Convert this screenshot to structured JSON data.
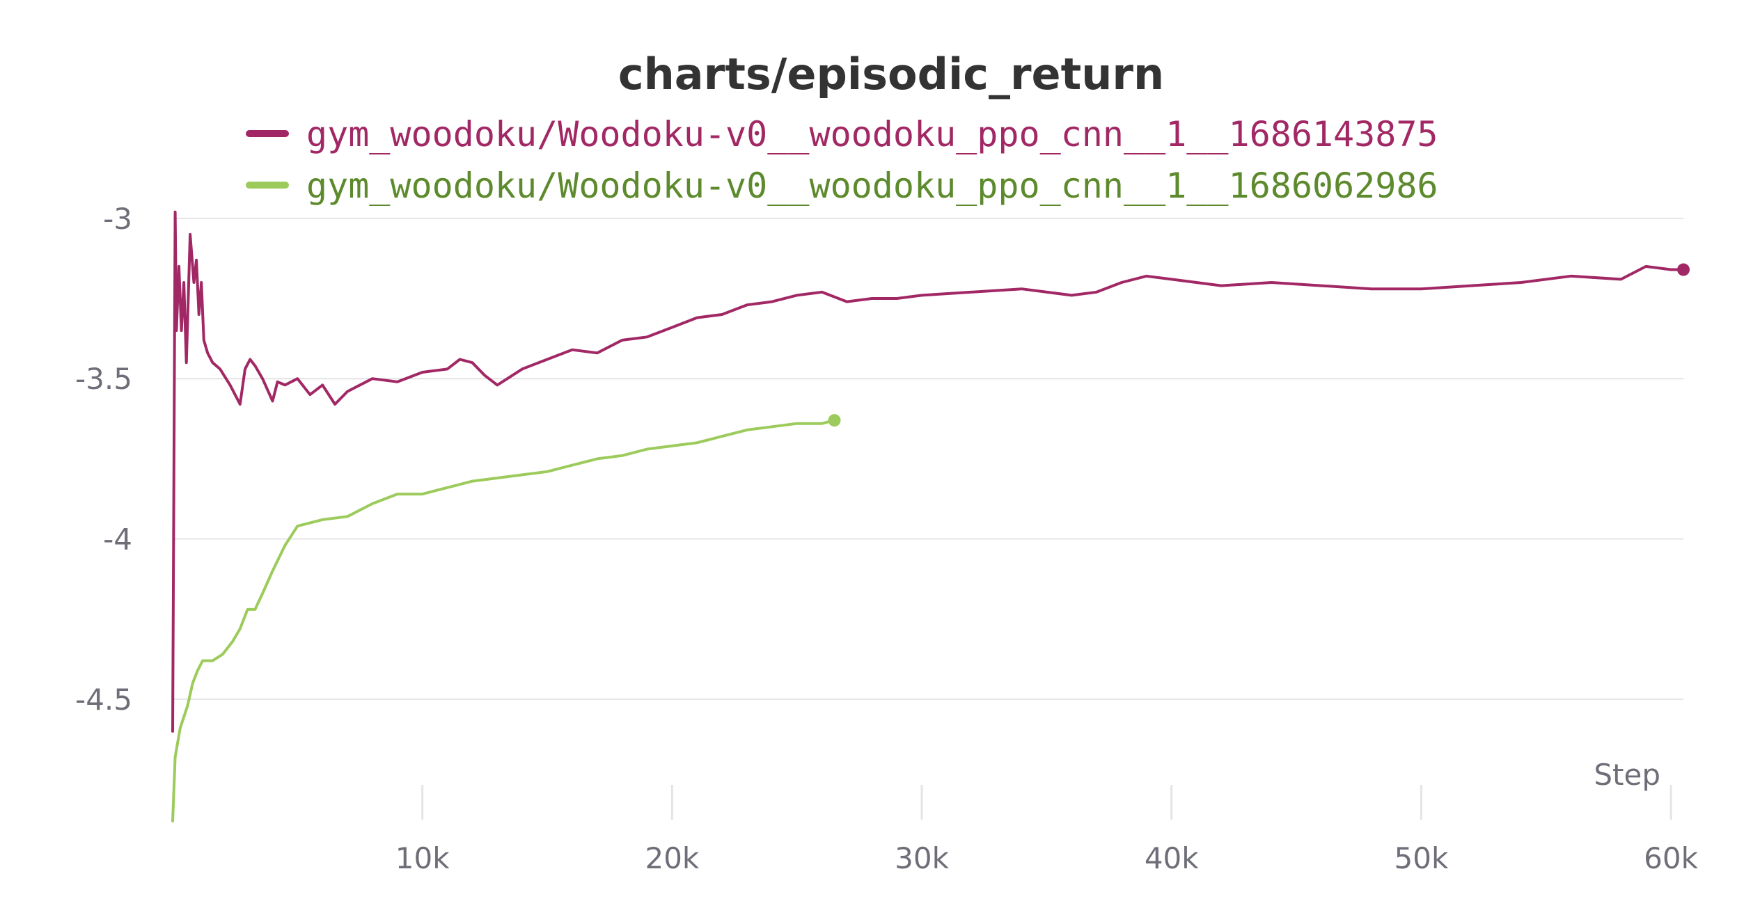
{
  "chart_data": {
    "type": "line",
    "title": "charts/episodic_return",
    "xlabel": "Step",
    "ylabel": "",
    "xlim": [
      0,
      60500
    ],
    "ylim": [
      -4.88,
      -2.97
    ],
    "x_ticks": [
      10000,
      20000,
      30000,
      40000,
      50000,
      60000
    ],
    "x_tick_labels": [
      "10k",
      "20k",
      "30k",
      "40k",
      "50k",
      "60k"
    ],
    "y_ticks": [
      -3,
      -3.5,
      -4,
      -4.5
    ],
    "y_tick_labels": [
      "-3",
      "-3.5",
      "-4",
      "-4.5"
    ],
    "grid": true,
    "legend_position": "top",
    "series": [
      {
        "name": "gym_woodoku/Woodoku-v0__woodoku_ppo_cnn__1__1686143875",
        "color": "#a12864",
        "legend_text_color": "#a12864",
        "x": [
          0,
          100,
          150,
          250,
          350,
          450,
          550,
          700,
          850,
          950,
          1050,
          1150,
          1250,
          1400,
          1600,
          1900,
          2300,
          2700,
          2900,
          3100,
          3300,
          3600,
          4000,
          4200,
          4500,
          5000,
          5500,
          6000,
          6500,
          7000,
          8000,
          9000,
          10000,
          11000,
          11500,
          12000,
          12500,
          13000,
          14000,
          15000,
          16000,
          17000,
          18000,
          19000,
          20000,
          21000,
          22000,
          23000,
          24000,
          25000,
          26000,
          27000,
          28000,
          29000,
          30000,
          32000,
          34000,
          36000,
          37000,
          38000,
          39000,
          40000,
          42000,
          44000,
          46000,
          48000,
          50000,
          52000,
          54000,
          56000,
          58000,
          59000,
          60000,
          60500
        ],
        "y": [
          -4.6,
          -2.98,
          -3.35,
          -3.15,
          -3.35,
          -3.2,
          -3.45,
          -3.05,
          -3.2,
          -3.13,
          -3.3,
          -3.2,
          -3.38,
          -3.42,
          -3.45,
          -3.47,
          -3.52,
          -3.58,
          -3.47,
          -3.44,
          -3.46,
          -3.5,
          -3.57,
          -3.51,
          -3.52,
          -3.5,
          -3.55,
          -3.52,
          -3.58,
          -3.54,
          -3.5,
          -3.51,
          -3.48,
          -3.47,
          -3.44,
          -3.45,
          -3.49,
          -3.52,
          -3.47,
          -3.44,
          -3.41,
          -3.42,
          -3.38,
          -3.37,
          -3.34,
          -3.31,
          -3.3,
          -3.27,
          -3.26,
          -3.24,
          -3.23,
          -3.26,
          -3.25,
          -3.25,
          -3.24,
          -3.23,
          -3.22,
          -3.24,
          -3.23,
          -3.2,
          -3.18,
          -3.19,
          -3.21,
          -3.2,
          -3.21,
          -3.22,
          -3.22,
          -3.21,
          -3.2,
          -3.18,
          -3.19,
          -3.15,
          -3.16,
          -3.16
        ]
      },
      {
        "name": "gym_woodoku/Woodoku-v0__woodoku_ppo_cnn__1__1686062986",
        "color": "#9ccb5b",
        "legend_text_color": "#5d8a2c",
        "x": [
          0,
          100,
          300,
          600,
          800,
          1000,
          1200,
          1600,
          2000,
          2400,
          2700,
          3000,
          3300,
          3600,
          4000,
          4500,
          5000,
          6000,
          7000,
          8000,
          9000,
          10000,
          11000,
          12000,
          14000,
          15000,
          16000,
          17000,
          18000,
          19000,
          20000,
          21000,
          22000,
          23000,
          24000,
          25000,
          26000,
          26500
        ],
        "y": [
          -4.88,
          -4.68,
          -4.59,
          -4.52,
          -4.45,
          -4.41,
          -4.38,
          -4.38,
          -4.36,
          -4.32,
          -4.28,
          -4.22,
          -4.22,
          -4.17,
          -4.1,
          -4.02,
          -3.96,
          -3.94,
          -3.93,
          -3.89,
          -3.86,
          -3.86,
          -3.84,
          -3.82,
          -3.8,
          -3.79,
          -3.77,
          -3.75,
          -3.74,
          -3.72,
          -3.71,
          -3.7,
          -3.68,
          -3.66,
          -3.65,
          -3.64,
          -3.64,
          -3.63
        ]
      }
    ]
  }
}
